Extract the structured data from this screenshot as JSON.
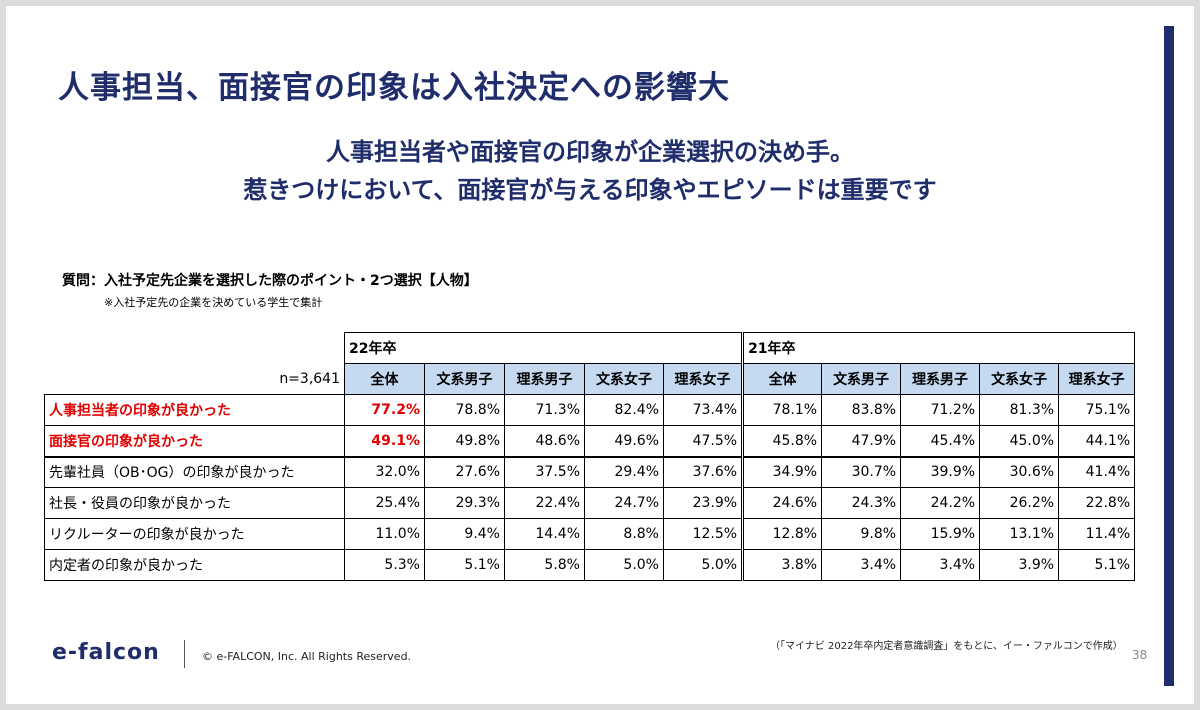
{
  "title": "人事担当、面接官の印象は入社決定への影響大",
  "subtitle_line1": "人事担当者や面接官の印象が企業選択の決め手。",
  "subtitle_line2": "惹きつけにおいて、面接官が与える印象やエピソードは重要です",
  "question": "質問：入社予定先企業を選択した際のポイント・2つ選択【人物】",
  "note": "※入社予定先の企業を決めている学生で集計",
  "n_label": "n=3,641",
  "year_22": "22年卒",
  "year_21": "21年卒",
  "columns": [
    "全体",
    "文系男子",
    "理系男子",
    "文系女子",
    "理系女子"
  ],
  "rows": [
    {
      "label": "人事担当者の印象が良かった",
      "highlight": true,
      "y22": [
        "77.2%",
        "78.8%",
        "71.3%",
        "82.4%",
        "73.4%"
      ],
      "y21": [
        "78.1%",
        "83.8%",
        "71.2%",
        "81.3%",
        "75.1%"
      ]
    },
    {
      "label": "面接官の印象が良かった",
      "highlight": true,
      "y22": [
        "49.1%",
        "49.8%",
        "48.6%",
        "49.6%",
        "47.5%"
      ],
      "y21": [
        "45.8%",
        "47.9%",
        "45.4%",
        "45.0%",
        "44.1%"
      ]
    },
    {
      "label": "先輩社員（OB･OG）の印象が良かった",
      "highlight": false,
      "y22": [
        "32.0%",
        "27.6%",
        "37.5%",
        "29.4%",
        "37.6%"
      ],
      "y21": [
        "34.9%",
        "30.7%",
        "39.9%",
        "30.6%",
        "41.4%"
      ]
    },
    {
      "label": "社長・役員の印象が良かった",
      "highlight": false,
      "y22": [
        "25.4%",
        "29.3%",
        "22.4%",
        "24.7%",
        "23.9%"
      ],
      "y21": [
        "24.6%",
        "24.3%",
        "24.2%",
        "26.2%",
        "22.8%"
      ]
    },
    {
      "label": "リクルーターの印象が良かった",
      "highlight": false,
      "y22": [
        "11.0%",
        "9.4%",
        "14.4%",
        "8.8%",
        "12.5%"
      ],
      "y21": [
        "12.8%",
        "9.8%",
        "15.9%",
        "13.1%",
        "11.4%"
      ]
    },
    {
      "label": "内定者の印象が良かった",
      "highlight": false,
      "y22": [
        "5.3%",
        "5.1%",
        "5.8%",
        "5.0%",
        "5.0%"
      ],
      "y21": [
        "3.8%",
        "3.4%",
        "3.4%",
        "3.9%",
        "5.1%"
      ]
    }
  ],
  "footer": {
    "logo": "e-falcon",
    "copyright": "© e-FALCON, Inc. All Rights Reserved.",
    "source": "（「マイナビ 2022年卒内定者意識調査」をもとに、イー・ファルコンで作成）",
    "page": "38"
  },
  "colors": {
    "navy": "#1f2d6b",
    "header_blue": "#c5d9f1",
    "highlight_red": "#e00000"
  }
}
